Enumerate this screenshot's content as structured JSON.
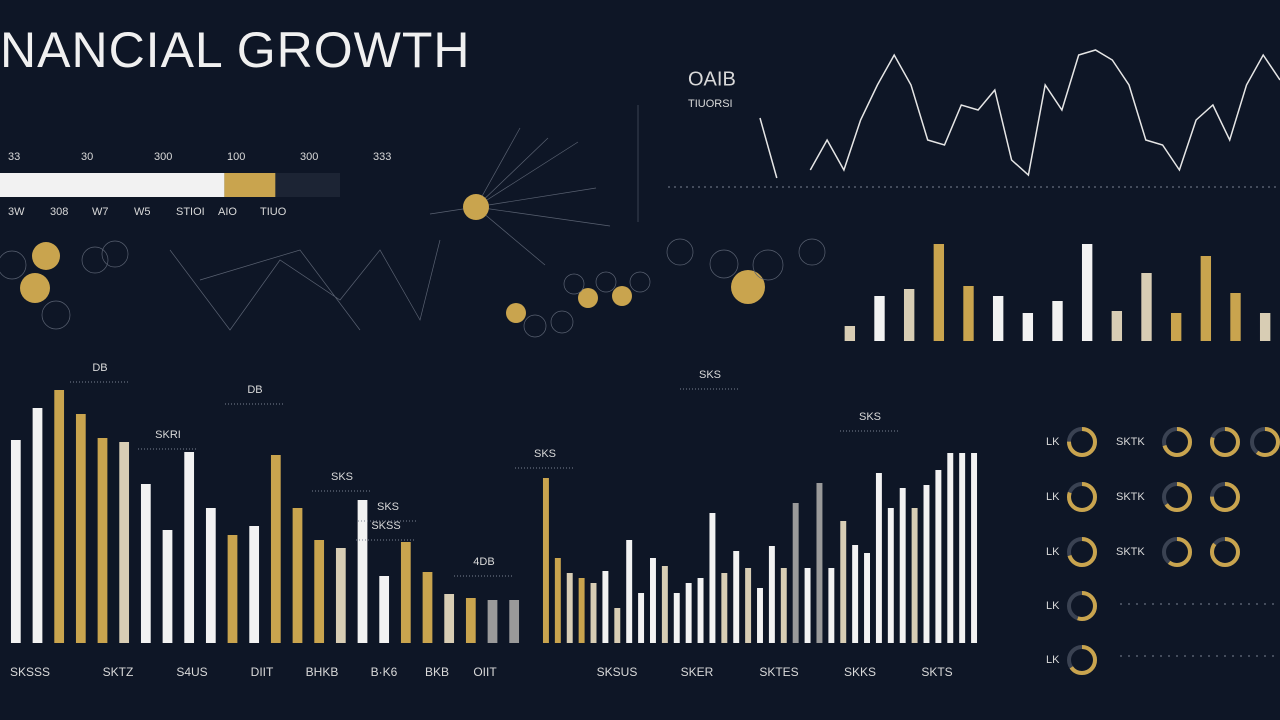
{
  "title": "NANCIAL GROWTH",
  "chart_data": [
    {
      "type": "bar",
      "values": [
        203,
        235,
        253,
        229,
        205,
        201,
        159,
        113,
        191,
        135,
        108,
        117,
        188,
        135,
        103,
        95,
        143,
        67,
        101,
        71,
        49,
        45,
        43,
        43
      ],
      "colors": [
        "#f2f2f2",
        "#f2f2f2",
        "#c9a44e",
        "#c9a44e",
        "#c9a44e",
        "#d8cdb4",
        "#f2f2f2",
        "#f2f2f2",
        "#f2f2f2",
        "#f2f2f2",
        "#c9a44e",
        "#f2f2f2",
        "#c9a44e",
        "#c9a44e",
        "#c9a44e",
        "#d8cdb4",
        "#f2f2f2",
        "#f2f2f2",
        "#c9a44e",
        "#c9a44e",
        "#d8cdb4",
        "#c9a44e",
        "#9a9a9a",
        "#9a9a9a"
      ],
      "annotations": [
        "DB",
        "DB",
        "SKRI",
        "SKS",
        "SKS",
        "SKSS",
        "4DB"
      ],
      "axis_labels": [
        "SKSSS",
        "SKTZ",
        "S4US",
        "DIIT",
        "BHKB",
        "B·K6",
        "BKB",
        "OIIT"
      ]
    },
    {
      "type": "bar",
      "values": [
        165,
        85,
        70,
        65,
        60,
        72,
        35,
        103,
        50,
        85,
        77,
        50,
        60,
        65,
        130,
        70,
        92,
        75,
        55,
        97,
        75,
        140,
        75,
        160,
        75,
        122,
        98,
        90,
        170,
        135,
        155,
        135,
        158,
        173,
        190,
        190,
        190
      ],
      "colors": [
        "#c9a44e",
        "#c9a44e",
        "#d8cdb4",
        "#c9a44e",
        "#d8cdb4",
        "#f2f2f2",
        "#d8cdb4",
        "#f2f2f2",
        "#f2f2f2",
        "#f2f2f2",
        "#d8cdb4",
        "#f2f2f2",
        "#f2f2f2",
        "#f2f2f2",
        "#f2f2f2",
        "#d8cdb4",
        "#f2f2f2",
        "#d8cdb4",
        "#f2f2f2",
        "#f2f2f2",
        "#d8cdb4",
        "#9a9a9a",
        "#f2f2f2",
        "#9a9a9a",
        "#f2f2f2",
        "#d8cdb4",
        "#f2f2f2",
        "#f2f2f2",
        "#f2f2f2",
        "#f2f2f2",
        "#f2f2f2",
        "#d8cdb4",
        "#f2f2f2",
        "#f2f2f2",
        "#f2f2f2",
        "#f2f2f2",
        "#f2f2f2"
      ],
      "annotations": [
        "SKS",
        "SKS",
        "SKS"
      ],
      "axis_labels": [
        "SKSUS",
        "SKER",
        "SKTES",
        "SKKS",
        "SKTS"
      ]
    },
    {
      "type": "bar",
      "values": [
        15,
        45,
        52,
        97,
        55,
        45,
        28,
        40,
        97,
        30,
        68,
        28,
        85,
        48,
        28
      ],
      "colors": [
        "#d8cdb4",
        "#f2f2f2",
        "#d8cdb4",
        "#c9a44e",
        "#c9a44e",
        "#f2f2f2",
        "#f2f2f2",
        "#f2f2f2",
        "#f2f2f2",
        "#d8cdb4",
        "#d8cdb4",
        "#c9a44e",
        "#c9a44e",
        "#c9a44e",
        "#d8cdb4"
      ]
    },
    {
      "type": "line",
      "color": "#e6e6e6",
      "title": "OAIB",
      "subtitle": "TIUORSI",
      "values": [
        62,
        2,
        null,
        10,
        40,
        10,
        60,
        95,
        125,
        95,
        40,
        35,
        75,
        70,
        90,
        20,
        5,
        95,
        70,
        125,
        130,
        120,
        95,
        40,
        35,
        10,
        60,
        75,
        40,
        95,
        125,
        100
      ]
    },
    {
      "type": "stacked_bar",
      "values": [
        66,
        15,
        19
      ],
      "colors": [
        "#f2f2f2",
        "#c9a44e",
        "#1c2434"
      ],
      "tick_labels": [
        "33",
        "30",
        "300",
        "100",
        "300",
        "333"
      ],
      "sub_labels": [
        "3W",
        "308",
        "W7",
        "W5",
        "STIOI",
        "AIO",
        "TIUO"
      ]
    },
    {
      "type": "donut",
      "color": "#c9a44e",
      "row_labels": [
        "LK",
        "LK",
        "LK",
        "LK",
        "LK"
      ],
      "mid_labels": [
        "SKTK",
        "SKTK",
        "SKTK"
      ],
      "values": [
        [
          75,
          70,
          80,
          60
        ],
        [
          80,
          65,
          75
        ],
        [
          70,
          60,
          85
        ],
        [
          55
        ],
        [
          65
        ]
      ]
    }
  ]
}
